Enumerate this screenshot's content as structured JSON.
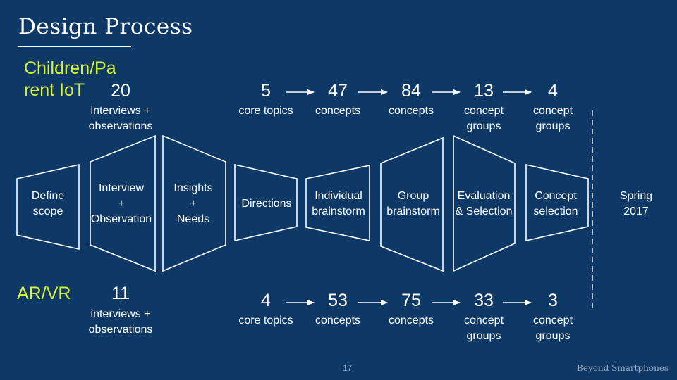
{
  "slide": {
    "title": "Design Process",
    "page_number": "17",
    "brand": "Beyond Smartphones"
  },
  "tracks": {
    "iot": {
      "label_line1": "Children/Pa",
      "label_line2": "rent IoT",
      "interviews_count": "20",
      "interviews_sub1": "interviews +",
      "interviews_sub2": "observations",
      "steps": [
        {
          "value": "5",
          "sub1": "core topics",
          "sub2": ""
        },
        {
          "value": "47",
          "sub1": "concepts",
          "sub2": ""
        },
        {
          "value": "84",
          "sub1": "concepts",
          "sub2": ""
        },
        {
          "value": "13",
          "sub1": "concept",
          "sub2": "groups"
        },
        {
          "value": "4",
          "sub1": "concept",
          "sub2": "groups"
        }
      ]
    },
    "arvr": {
      "label": "AR/VR",
      "interviews_count": "11",
      "interviews_sub1": "interviews +",
      "interviews_sub2": "observations",
      "steps": [
        {
          "value": "4",
          "sub1": "core topics",
          "sub2": ""
        },
        {
          "value": "53",
          "sub1": "concepts",
          "sub2": ""
        },
        {
          "value": "75",
          "sub1": "concepts",
          "sub2": ""
        },
        {
          "value": "33",
          "sub1": "concept",
          "sub2": "groups"
        },
        {
          "value": "3",
          "sub1": "concept",
          "sub2": "groups"
        }
      ]
    }
  },
  "stages": [
    {
      "line1": "Define",
      "line2": "scope",
      "line3": ""
    },
    {
      "line1": "Interview",
      "line2": "+",
      "line3": "Observation"
    },
    {
      "line1": "Insights",
      "line2": "+",
      "line3": "Needs"
    },
    {
      "line1": "Directions",
      "line2": "",
      "line3": ""
    },
    {
      "line1": "Individual",
      "line2": "brainstorm",
      "line3": ""
    },
    {
      "line1": "Group",
      "line2": "brainstorm",
      "line3": ""
    },
    {
      "line1": "Evaluation",
      "line2": "& Selection",
      "line3": ""
    },
    {
      "line1": "Concept",
      "line2": "selection",
      "line3": ""
    }
  ],
  "timeline": {
    "line1": "Spring",
    "line2": "2017"
  },
  "colors": {
    "background": "#0e3866",
    "accent": "#d9f23a",
    "text": "#ffffff"
  }
}
